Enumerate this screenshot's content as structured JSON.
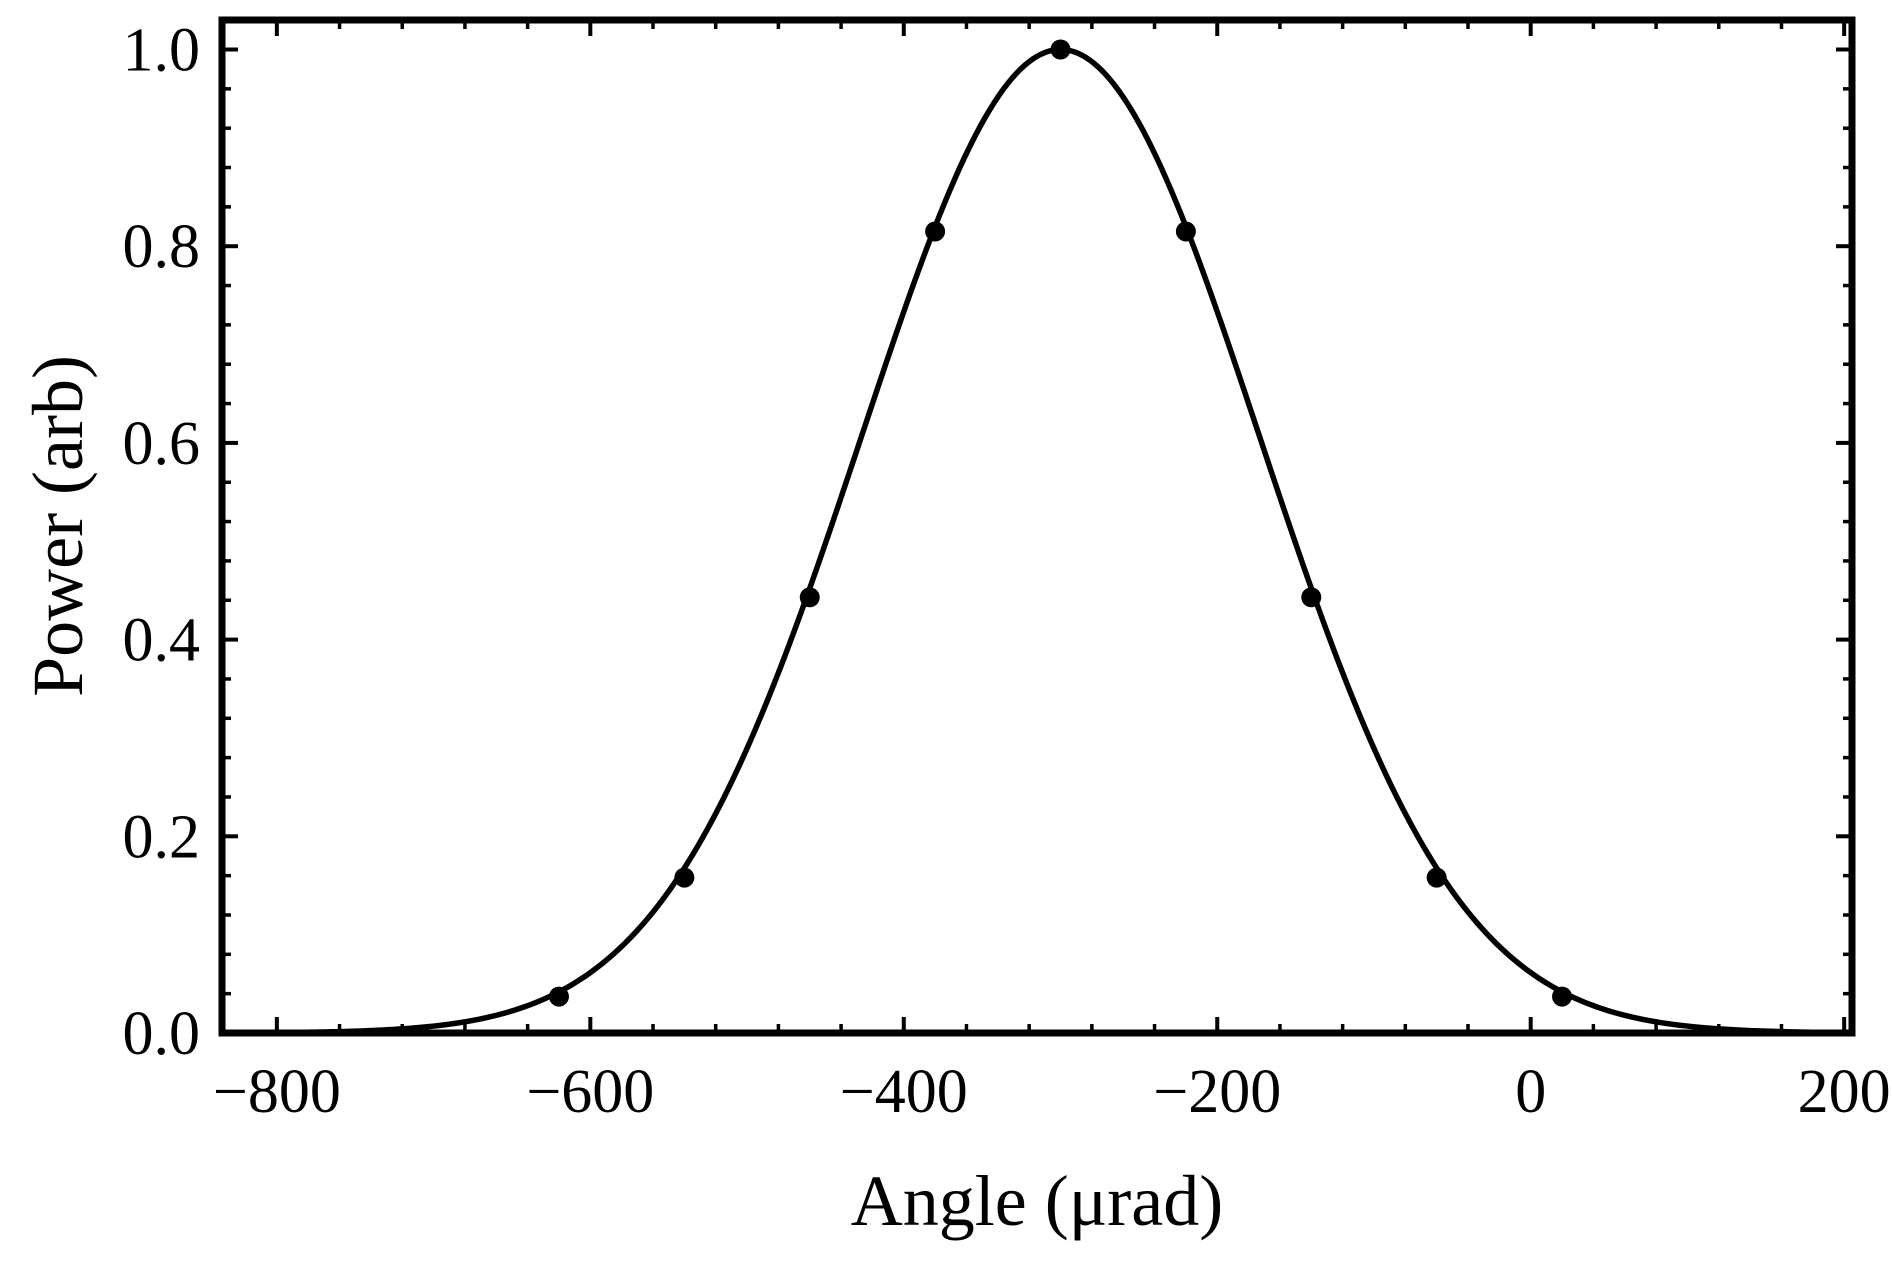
{
  "chart_data": {
    "type": "line",
    "title": "",
    "xlabel": "Angle (μrad)",
    "ylabel": "Power (arb)",
    "xlim": [
      -835,
      205
    ],
    "ylim": [
      0,
      1.03
    ],
    "xticks": [
      -800,
      -600,
      -400,
      -200,
      0,
      200
    ],
    "xtick_labels": [
      "−800",
      "−600",
      "−400",
      "−200",
      "0",
      "200"
    ],
    "yticks": [
      0.0,
      0.2,
      0.4,
      0.6,
      0.8,
      1.0
    ],
    "ytick_labels": [
      "0.0",
      "0.2",
      "0.4",
      "0.6",
      "0.8",
      "1.0"
    ],
    "grid": false,
    "line_color": "#000000",
    "curve": {
      "shape": "gaussian",
      "center": -300,
      "amplitude": 1.0,
      "sigma": 127,
      "x_range": [
        -835,
        205
      ]
    },
    "points": {
      "x": [
        -620,
        -540,
        -460,
        -380,
        -300,
        -220,
        -140,
        -60,
        20
      ],
      "y": [
        0.037,
        0.158,
        0.443,
        0.815,
        1.0,
        0.815,
        0.443,
        0.158,
        0.037
      ]
    }
  }
}
